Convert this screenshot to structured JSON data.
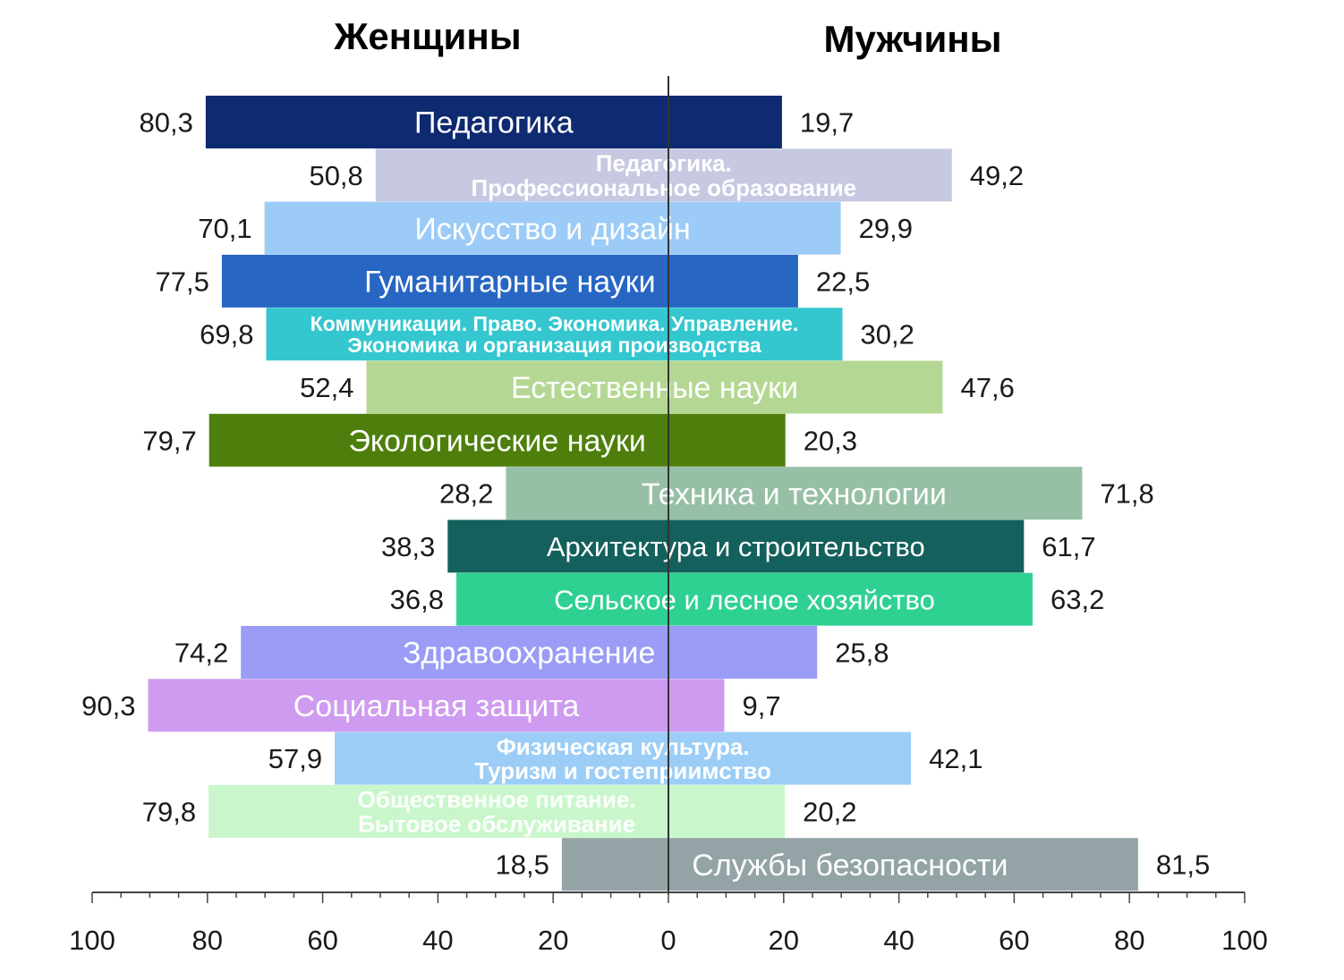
{
  "chart_data": {
    "type": "bar",
    "orientation": "diverging-horizontal",
    "left_header": "Женщины",
    "right_header": "Мужчины",
    "xlim": [
      -100,
      100
    ],
    "tick_labels": [
      "100",
      "80",
      "60",
      "40",
      "20",
      "0",
      "20",
      "40",
      "60",
      "80",
      "100"
    ],
    "series": [
      {
        "name": "Женщины"
      },
      {
        "name": "Мужчины"
      }
    ],
    "categories": [
      {
        "lines": [
          "Педагогика"
        ],
        "women": 80.3,
        "men": 19.7,
        "women_label": "80,3",
        "men_label": "19,7",
        "color": "#0e2a70"
      },
      {
        "lines": [
          "Педагогика.",
          "Профессиональное образование"
        ],
        "women": 50.8,
        "men": 49.2,
        "women_label": "50,8",
        "men_label": "49,2",
        "color": "#c6c9e1"
      },
      {
        "lines": [
          "Искусство и дизайн"
        ],
        "women": 70.1,
        "men": 29.9,
        "women_label": "70,1",
        "men_label": "29,9",
        "color": "#9ccbf7"
      },
      {
        "lines": [
          "Гуманитарные науки"
        ],
        "women": 77.5,
        "men": 22.5,
        "women_label": "77,5",
        "men_label": "22,5",
        "color": "#2866c4"
      },
      {
        "lines": [
          "Коммуникации. Право. Экономика. Управление.",
          "Экономика и организация производства"
        ],
        "women": 69.8,
        "men": 30.2,
        "women_label": "69,8",
        "men_label": "30,2",
        "color": "#34c7cf"
      },
      {
        "lines": [
          "Естественные науки"
        ],
        "women": 52.4,
        "men": 47.6,
        "women_label": "52,4",
        "men_label": "47,6",
        "color": "#b4d894"
      },
      {
        "lines": [
          "Экологические науки"
        ],
        "women": 79.7,
        "men": 20.3,
        "women_label": "79,7",
        "men_label": "20,3",
        "color": "#4e7f0c"
      },
      {
        "lines": [
          "Техника и технологии"
        ],
        "women": 28.2,
        "men": 71.8,
        "women_label": "28,2",
        "men_label": "71,8",
        "color": "#97bfa6"
      },
      {
        "lines": [
          "Архитектура и строительство"
        ],
        "women": 38.3,
        "men": 61.7,
        "women_label": "38,3",
        "men_label": "61,7",
        "color": "#14605c"
      },
      {
        "lines": [
          "Сельское и лесное хозяйство"
        ],
        "women": 36.8,
        "men": 63.2,
        "women_label": "36,8",
        "men_label": "63,2",
        "color": "#2fd192"
      },
      {
        "lines": [
          "Здравоохранение"
        ],
        "women": 74.2,
        "men": 25.8,
        "women_label": "74,2",
        "men_label": "25,8",
        "color": "#9a9cf6"
      },
      {
        "lines": [
          "Социальная защита"
        ],
        "women": 90.3,
        "men": 9.7,
        "women_label": "90,3",
        "men_label": "9,7",
        "color": "#cf9bf0"
      },
      {
        "lines": [
          "Физическая культура.",
          "Туризм и гостеприимство"
        ],
        "women": 57.9,
        "men": 42.1,
        "women_label": "57,9",
        "men_label": "42,1",
        "color": "#9bcdf6"
      },
      {
        "lines": [
          "Общественное питание.",
          "Бытовое обслуживание"
        ],
        "women": 79.8,
        "men": 20.2,
        "women_label": "79,8",
        "men_label": "20,2",
        "color": "#c9f7cb"
      },
      {
        "lines": [
          "Службы безопасности"
        ],
        "women": 18.5,
        "men": 81.5,
        "women_label": "18,5",
        "men_label": "81,5",
        "color": "#94a4a6"
      }
    ]
  }
}
